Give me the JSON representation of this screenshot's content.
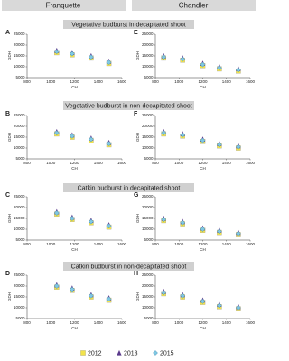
{
  "header": {
    "left": "Franquette",
    "right": "Chandler"
  },
  "sections": [
    "Vegetative budburst in decapitated shoot",
    "Vegetative budburst in non-decapitated shoot",
    "Catkin budburst in decapitated shoot",
    "Catkin budburst in non-decapitated shoot"
  ],
  "chart_data": [
    {
      "type": "scatter",
      "panel": "A",
      "xlabel": "CH",
      "ylabel": "GDH",
      "xlim": [
        800,
        1600
      ],
      "ylim": [
        5000,
        25000
      ],
      "xticks": [
        800,
        1000,
        1200,
        1400,
        1600
      ],
      "yticks": [
        5000,
        10000,
        15000,
        20000,
        25000
      ],
      "series": [
        {
          "name": "2012",
          "color": "#f2e34c",
          "marker": "square",
          "x": [
            1050,
            1180,
            1340,
            1490
          ],
          "values": [
            16500,
            15500,
            14000,
            11500
          ]
        },
        {
          "name": "2013",
          "color": "#5b3a8c",
          "marker": "triangle",
          "x": [
            1050,
            1180,
            1340,
            1490
          ],
          "values": [
            17500,
            16500,
            15000,
            12500
          ]
        },
        {
          "name": "2015",
          "color": "#7ec8e3",
          "marker": "diamond",
          "x": [
            1050,
            1180,
            1340,
            1490
          ],
          "values": [
            17000,
            16000,
            14500,
            12000
          ]
        }
      ]
    },
    {
      "type": "scatter",
      "panel": "B",
      "xlabel": "CH",
      "ylabel": "GDH",
      "xlim": [
        800,
        1600
      ],
      "ylim": [
        5000,
        25000
      ],
      "xticks": [
        800,
        1000,
        1200,
        1400,
        1600
      ],
      "yticks": [
        5000,
        10000,
        15000,
        20000,
        25000
      ],
      "series": [
        {
          "name": "2012",
          "color": "#f2e34c",
          "marker": "square",
          "x": [
            1050,
            1180,
            1340,
            1490
          ],
          "values": [
            16500,
            15000,
            13500,
            11500
          ]
        },
        {
          "name": "2013",
          "color": "#5b3a8c",
          "marker": "triangle",
          "x": [
            1050,
            1180,
            1340,
            1490
          ],
          "values": [
            17500,
            16000,
            14500,
            12500
          ]
        },
        {
          "name": "2015",
          "color": "#7ec8e3",
          "marker": "diamond",
          "x": [
            1050,
            1180,
            1340,
            1490
          ],
          "values": [
            17000,
            15500,
            14000,
            12000
          ]
        }
      ]
    },
    {
      "type": "scatter",
      "panel": "C",
      "xlabel": "CH",
      "ylabel": "GDH",
      "xlim": [
        800,
        1600
      ],
      "ylim": [
        5000,
        25000
      ],
      "xticks": [
        800,
        1000,
        1200,
        1400,
        1600
      ],
      "yticks": [
        5000,
        10000,
        15000,
        20000,
        25000
      ],
      "series": [
        {
          "name": "2012",
          "color": "#f2e34c",
          "marker": "square",
          "x": [
            1050,
            1180,
            1340,
            1490
          ],
          "values": [
            17000,
            14500,
            13000,
            11000
          ]
        },
        {
          "name": "2013",
          "color": "#5b3a8c",
          "marker": "triangle",
          "x": [
            1050,
            1180,
            1340,
            1490
          ],
          "values": [
            18000,
            15500,
            14000,
            12000
          ]
        },
        {
          "name": "2015",
          "color": "#7ec8e3",
          "marker": "diamond",
          "x": [
            1050,
            1180,
            1340,
            1490
          ],
          "values": [
            17500,
            15000,
            13500,
            11500
          ]
        }
      ]
    },
    {
      "type": "scatter",
      "panel": "D",
      "xlabel": "CH",
      "ylabel": "GDH",
      "xlim": [
        800,
        1600
      ],
      "ylim": [
        5000,
        25000
      ],
      "xticks": [
        800,
        1000,
        1200,
        1400,
        1600
      ],
      "yticks": [
        5000,
        10000,
        15000,
        20000,
        25000
      ],
      "series": [
        {
          "name": "2012",
          "color": "#f2e34c",
          "marker": "square",
          "x": [
            1050,
            1180,
            1340,
            1490
          ],
          "values": [
            19500,
            18000,
            15000,
            13500
          ]
        },
        {
          "name": "2013",
          "color": "#5b3a8c",
          "marker": "triangle",
          "x": [
            1050,
            1180,
            1340,
            1490
          ],
          "values": [
            20500,
            19000,
            16000,
            14500
          ]
        },
        {
          "name": "2015",
          "color": "#7ec8e3",
          "marker": "diamond",
          "x": [
            1050,
            1180,
            1340,
            1490
          ],
          "values": [
            20000,
            18500,
            15500,
            14000
          ]
        }
      ]
    },
    {
      "type": "scatter",
      "panel": "E",
      "xlabel": "CH",
      "ylabel": "GDH",
      "xlim": [
        800,
        1600
      ],
      "ylim": [
        5000,
        25000
      ],
      "xticks": [
        800,
        1000,
        1200,
        1400,
        1600
      ],
      "yticks": [
        5000,
        10000,
        15000,
        20000,
        25000
      ],
      "series": [
        {
          "name": "2012",
          "color": "#f2e34c",
          "marker": "square",
          "x": [
            870,
            1030,
            1200,
            1340,
            1500
          ],
          "values": [
            14000,
            13000,
            10500,
            9000,
            8000
          ]
        },
        {
          "name": "2013",
          "color": "#5b3a8c",
          "marker": "triangle",
          "x": [
            870,
            1030,
            1200,
            1340,
            1500
          ],
          "values": [
            15000,
            14000,
            11500,
            10000,
            9000
          ]
        },
        {
          "name": "2015",
          "color": "#7ec8e3",
          "marker": "diamond",
          "x": [
            870,
            1030,
            1200,
            1340,
            1500
          ],
          "values": [
            14500,
            13500,
            11000,
            9500,
            8500
          ]
        }
      ]
    },
    {
      "type": "scatter",
      "panel": "F",
      "xlabel": "CH",
      "ylabel": "GDH",
      "xlim": [
        800,
        1600
      ],
      "ylim": [
        5000,
        25000
      ],
      "xticks": [
        800,
        1000,
        1200,
        1400,
        1600
      ],
      "yticks": [
        5000,
        10000,
        15000,
        20000,
        25000
      ],
      "series": [
        {
          "name": "2012",
          "color": "#f2e34c",
          "marker": "square",
          "x": [
            870,
            1030,
            1200,
            1340,
            1500
          ],
          "values": [
            16500,
            15500,
            13000,
            11000,
            10000
          ]
        },
        {
          "name": "2013",
          "color": "#5b3a8c",
          "marker": "triangle",
          "x": [
            870,
            1030,
            1200,
            1340,
            1500
          ],
          "values": [
            17500,
            16500,
            14000,
            12000,
            11000
          ]
        },
        {
          "name": "2015",
          "color": "#7ec8e3",
          "marker": "diamond",
          "x": [
            870,
            1030,
            1200,
            1340,
            1500
          ],
          "values": [
            17000,
            16000,
            13500,
            11500,
            10500
          ]
        }
      ]
    },
    {
      "type": "scatter",
      "panel": "G",
      "xlabel": "CH",
      "ylabel": "GDH",
      "xlim": [
        800,
        1600
      ],
      "ylim": [
        5000,
        25000
      ],
      "xticks": [
        800,
        1000,
        1200,
        1400,
        1600
      ],
      "yticks": [
        5000,
        10000,
        15000,
        20000,
        25000
      ],
      "series": [
        {
          "name": "2012",
          "color": "#f2e34c",
          "marker": "square",
          "x": [
            870,
            1030,
            1200,
            1340,
            1500
          ],
          "values": [
            14000,
            12500,
            9500,
            8500,
            7500
          ]
        },
        {
          "name": "2013",
          "color": "#5b3a8c",
          "marker": "triangle",
          "x": [
            870,
            1030,
            1200,
            1340,
            1500
          ],
          "values": [
            15000,
            13500,
            10500,
            9500,
            8500
          ]
        },
        {
          "name": "2015",
          "color": "#7ec8e3",
          "marker": "diamond",
          "x": [
            870,
            1030,
            1200,
            1340,
            1500
          ],
          "values": [
            14500,
            13000,
            10000,
            9000,
            8000
          ]
        }
      ]
    },
    {
      "type": "scatter",
      "panel": "H",
      "xlabel": "CH",
      "ylabel": "GDH",
      "xlim": [
        800,
        1600
      ],
      "ylim": [
        5000,
        25000
      ],
      "xticks": [
        800,
        1000,
        1200,
        1400,
        1600
      ],
      "yticks": [
        5000,
        10000,
        15000,
        20000,
        25000
      ],
      "series": [
        {
          "name": "2012",
          "color": "#f2e34c",
          "marker": "square",
          "x": [
            870,
            1030,
            1200,
            1340,
            1500
          ],
          "values": [
            16500,
            15000,
            12500,
            10500,
            9500
          ]
        },
        {
          "name": "2013",
          "color": "#5b3a8c",
          "marker": "triangle",
          "x": [
            870,
            1030,
            1200,
            1340,
            1500
          ],
          "values": [
            17500,
            16000,
            13500,
            11500,
            10500
          ]
        },
        {
          "name": "2015",
          "color": "#7ec8e3",
          "marker": "diamond",
          "x": [
            870,
            1030,
            1200,
            1340,
            1500
          ],
          "values": [
            17000,
            15500,
            13000,
            11000,
            10000
          ]
        }
      ]
    }
  ]
}
